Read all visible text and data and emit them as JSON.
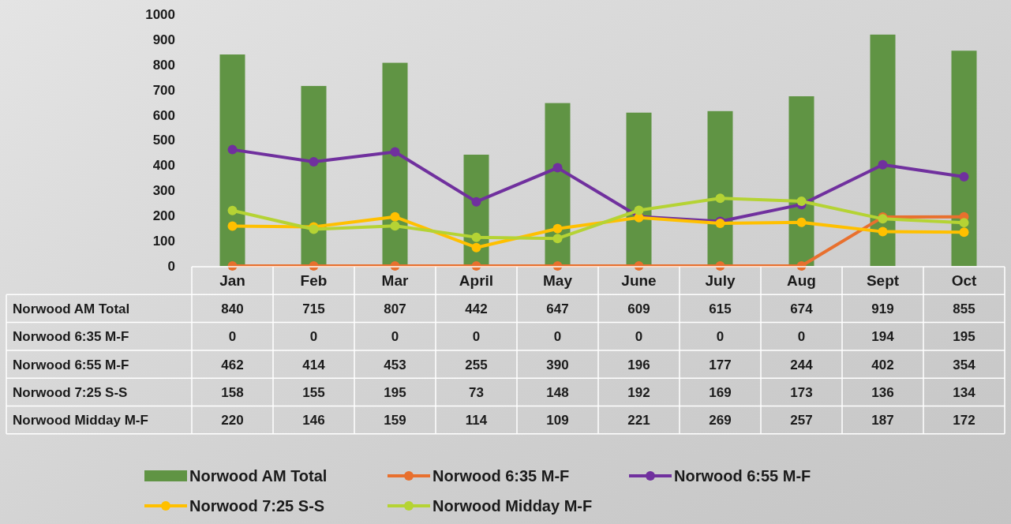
{
  "chart_data": {
    "type": "bar",
    "categories": [
      "Jan",
      "Feb",
      "Mar",
      "April",
      "May",
      "June",
      "July",
      "Aug",
      "Sept",
      "Oct"
    ],
    "series": [
      {
        "name": "Norwood AM Total",
        "color": "#609444",
        "values": [
          840,
          715,
          807,
          442,
          647,
          609,
          615,
          674,
          919,
          855
        ]
      },
      {
        "name": "Norwood 6:35 M-F",
        "type": "line",
        "color": "#e8702e",
        "values": [
          0,
          0,
          0,
          0,
          0,
          0,
          0,
          0,
          194,
          195
        ]
      },
      {
        "name": "Norwood 6:55 M-F",
        "type": "line",
        "color": "#70309e",
        "values": [
          462,
          414,
          453,
          255,
          390,
          196,
          177,
          244,
          402,
          354
        ]
      },
      {
        "name": "Norwood 7:25 S-S",
        "type": "line",
        "color": "#ffc000",
        "values": [
          158,
          155,
          195,
          73,
          148,
          192,
          169,
          173,
          136,
          134
        ]
      },
      {
        "name": "Norwood Midday M-F",
        "type": "line",
        "color": "#b5d334",
        "values": [
          220,
          146,
          159,
          114,
          109,
          221,
          269,
          257,
          187,
          172
        ]
      }
    ],
    "ylim": [
      0,
      1000
    ],
    "yticks": [
      0,
      100,
      200,
      300,
      400,
      500,
      600,
      700,
      800,
      900,
      1000
    ],
    "data_labels": true,
    "legend": "bottom",
    "marker": "circle",
    "grid": false
  }
}
